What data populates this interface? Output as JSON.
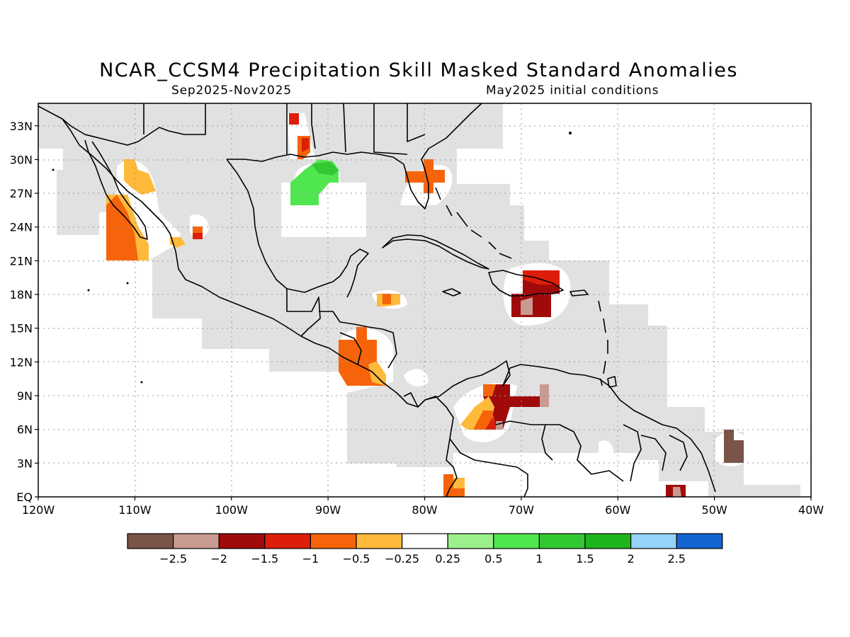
{
  "title": "NCAR_CCSM4 Precipitation Skill Masked Standard Anomalies",
  "subtitle_left": "Sep2025-Nov2025",
  "subtitle_right": "May2025 initial conditions",
  "map": {
    "lon_range": [
      -120,
      -40
    ],
    "lat_range": [
      0,
      35
    ],
    "lat_labels": [
      {
        "lat": 33,
        "label": "33N"
      },
      {
        "lat": 30,
        "label": "30N"
      },
      {
        "lat": 27,
        "label": "27N"
      },
      {
        "lat": 24,
        "label": "24N"
      },
      {
        "lat": 21,
        "label": "21N"
      },
      {
        "lat": 18,
        "label": "18N"
      },
      {
        "lat": 15,
        "label": "15N"
      },
      {
        "lat": 12,
        "label": "12N"
      },
      {
        "lat": 9,
        "label": "9N"
      },
      {
        "lat": 6,
        "label": "6N"
      },
      {
        "lat": 3,
        "label": "3N"
      },
      {
        "lat": 0,
        "label": "EQ"
      }
    ],
    "lon_labels": [
      {
        "lon": -120,
        "label": "120W"
      },
      {
        "lon": -110,
        "label": "110W"
      },
      {
        "lon": -100,
        "label": "100W"
      },
      {
        "lon": -90,
        "label": "90W"
      },
      {
        "lon": -80,
        "label": "80W"
      },
      {
        "lon": -70,
        "label": "70W"
      },
      {
        "lon": -60,
        "label": "60W"
      },
      {
        "lon": -50,
        "label": "50W"
      },
      {
        "lon": -40,
        "label": "40W"
      }
    ],
    "colors": {
      "skill_mask": "#e1e1e1",
      "grid": "#9a9a9a",
      "coast": "#000000",
      "lt_-2.5": "#7a5449",
      "-2.5_-2": "#c89a90",
      "-2_-1.5": "#a00a0a",
      "-1.5_-1": "#dc1e0a",
      "-1_-0.5": "#f5640a",
      "-0.5_-0.25": "#ffba3c",
      "-0.25_0.25": "#ffffff",
      "0.25_0.5": "#9cf08c",
      "0.5_1": "#50e650",
      "1_1.5": "#32c832",
      "1.5_2": "#1eb41e",
      "2_2.5": "#96d2fa",
      "gt_2.5": "#1464d2"
    },
    "anomaly_patches": [
      {
        "region": "Baja California / Gulf of California",
        "category": "-1_-0.5"
      },
      {
        "region": "Sonora",
        "category": "-0.5_-0.25"
      },
      {
        "region": "Sinaloa coast",
        "category": "-1.5_-1"
      },
      {
        "region": "Louisiana",
        "category": "-1.5_-1"
      },
      {
        "region": "Northern Gulf of Mexico",
        "category": "0.5_1"
      },
      {
        "region": "Central Florida",
        "category": "-1_-0.5"
      },
      {
        "region": "Western Caribbean",
        "category": "-0.5_-0.25"
      },
      {
        "region": "Honduras / Nicaragua",
        "category": "-1_-0.5"
      },
      {
        "region": "Hispaniola",
        "category": "-2_-1.5"
      },
      {
        "region": "Northern Colombia / Venezuela",
        "category": "-2_-1.5"
      },
      {
        "region": "Colombia Pacific",
        "category": "-1_-0.5"
      },
      {
        "region": "French Guiana offshore",
        "category": "lt_-2.5"
      }
    ]
  },
  "colorbar": {
    "colors": [
      "#7a5449",
      "#c89a90",
      "#a00a0a",
      "#dc1e0a",
      "#f5640a",
      "#ffba3c",
      "#ffffff",
      "#9cf08c",
      "#50e650",
      "#32c832",
      "#1eb41e",
      "#96d2fa",
      "#1464d2"
    ],
    "labels": [
      "−2.5",
      "−2",
      "−1.5",
      "−1",
      "−0.5",
      "−0.25",
      "0.25",
      "0.5",
      "1",
      "1.5",
      "2",
      "2.5"
    ]
  }
}
